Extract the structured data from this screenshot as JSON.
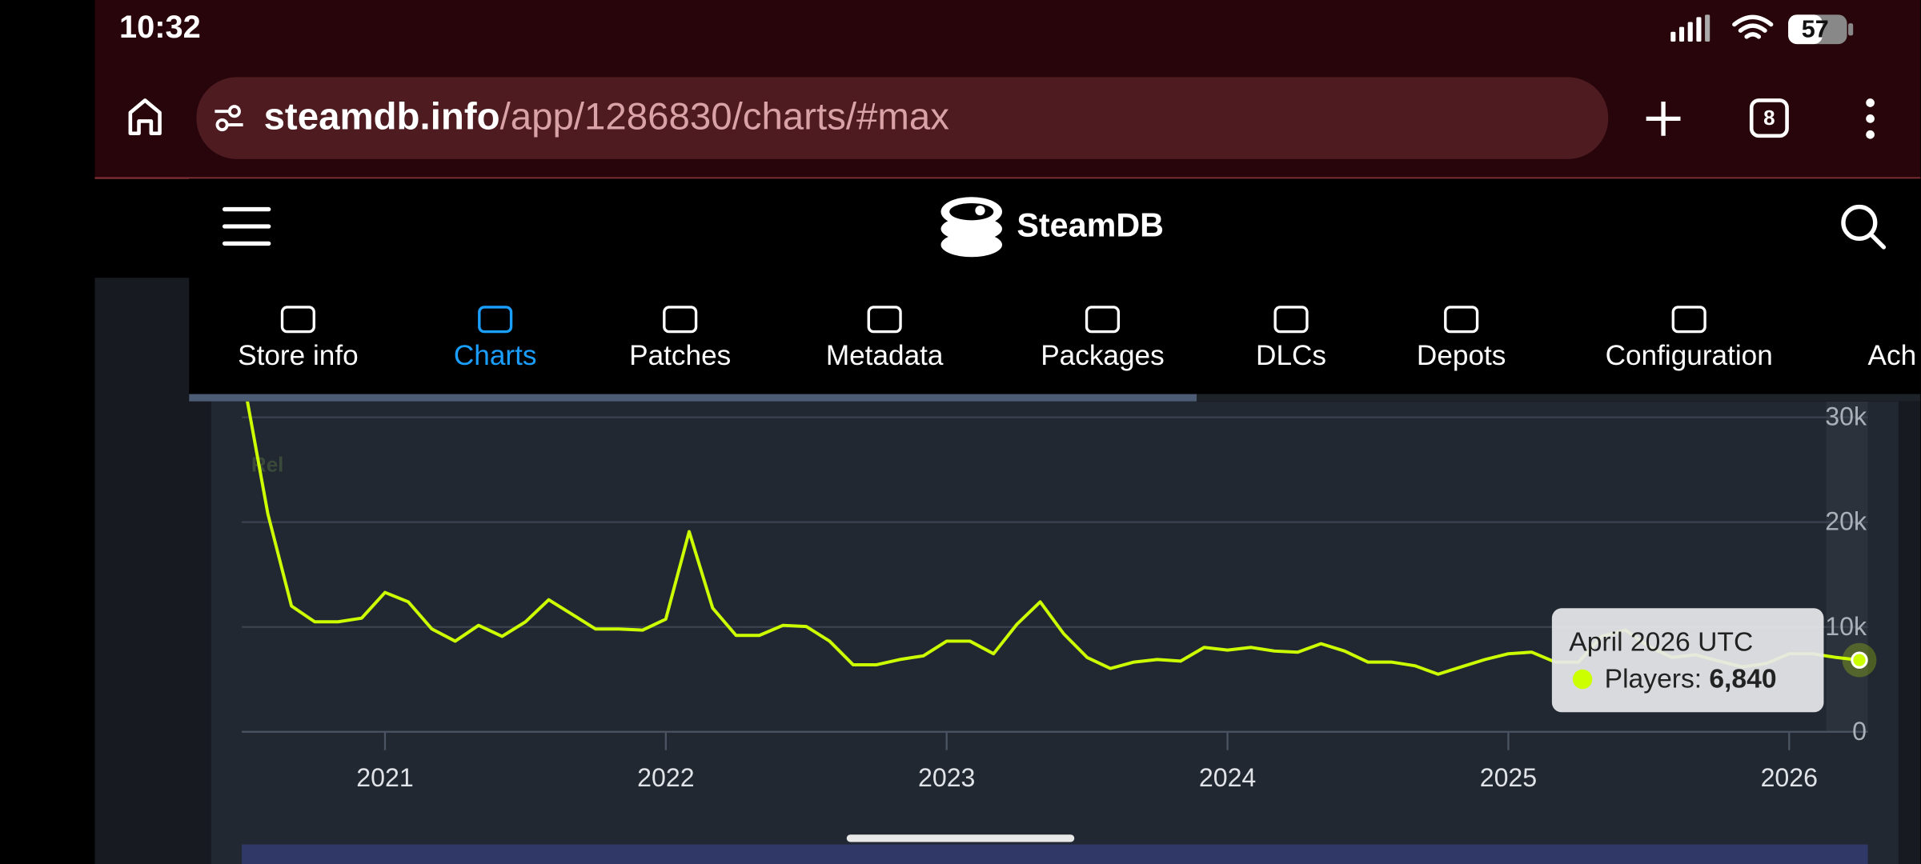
{
  "status": {
    "time": "10:32",
    "battery": "57"
  },
  "url": {
    "host": "steamdb.info",
    "path": "/app/1286830/charts/#max"
  },
  "tab_count": "8",
  "brand": "SteamDB",
  "tabs": [
    "Store info",
    "Charts",
    "Patches",
    "Metadata",
    "Packages",
    "DLCs",
    "Depots",
    "Configuration",
    "Ach"
  ],
  "active_tab": 1,
  "chart_data": {
    "type": "line",
    "badge": "Rel",
    "x": [
      2020.5,
      2020.583,
      2020.667,
      2020.75,
      2020.833,
      2020.917,
      2021,
      2021.083,
      2021.167,
      2021.25,
      2021.333,
      2021.417,
      2021.5,
      2021.583,
      2021.667,
      2021.75,
      2021.833,
      2021.917,
      2022,
      2022.083,
      2022.167,
      2022.25,
      2022.333,
      2022.417,
      2022.5,
      2022.583,
      2022.667,
      2022.75,
      2022.833,
      2022.917,
      2023,
      2023.083,
      2023.167,
      2023.25,
      2023.333,
      2023.417,
      2023.5,
      2023.583,
      2023.667,
      2023.75,
      2023.833,
      2023.917,
      2024,
      2024.083,
      2024.167,
      2024.25,
      2024.333,
      2024.417,
      2024.5,
      2024.583,
      2024.667,
      2024.75,
      2024.833,
      2024.917,
      2025,
      2025.083,
      2025.167,
      2025.25,
      2025.333,
      2025.417,
      2025.5,
      2025.583,
      2025.667,
      2025.75,
      2025.833,
      2025.917,
      2026,
      2026.083,
      2026.167,
      2026.25
    ],
    "series": [
      {
        "name": "Players",
        "color": "#ccff00",
        "values": [
          33000,
          20800,
          12000,
          10500,
          10500,
          10850,
          13300,
          12400,
          9800,
          8650,
          10150,
          9100,
          10500,
          12600,
          11200,
          9800,
          9800,
          9700,
          10750,
          19100,
          11800,
          9200,
          9200,
          10150,
          10050,
          8650,
          6400,
          6400,
          6900,
          7250,
          8650,
          8650,
          7450,
          10250,
          12400,
          9350,
          7100,
          6050,
          6650,
          6900,
          6750,
          8050,
          7800,
          8050,
          7700,
          7600,
          8400,
          7700,
          6650,
          6650,
          6300,
          5500,
          6200,
          6900,
          7450,
          7600,
          6650,
          6650,
          9100,
          9700,
          8150,
          7100,
          7350,
          6750,
          6200,
          6500,
          7450,
          7450,
          7100,
          6840
        ]
      }
    ],
    "xlim": [
      2020.49,
      2026.28
    ],
    "xticks": [
      2021,
      2022,
      2023,
      2024,
      2025,
      2026
    ],
    "ylim": [
      0,
      30000
    ],
    "yticks": [
      0,
      {
        "value": 10000,
        "label": "10k"
      },
      {
        "value": 20000,
        "label": "20k"
      },
      {
        "value": 30000,
        "label": "30k"
      }
    ],
    "grid": true,
    "tooltip": {
      "title": "April 2026 UTC",
      "label": "Players:",
      "value_label": "6,840"
    }
  }
}
